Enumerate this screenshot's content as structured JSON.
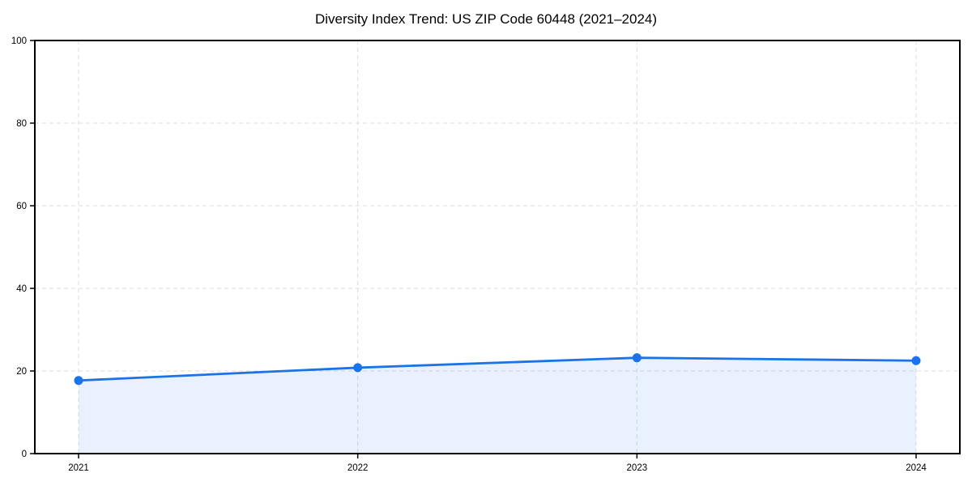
{
  "chart_data": {
    "type": "area",
    "title": "Diversity Index Trend: US ZIP Code 60448 (2021–2024)",
    "categories": [
      "2021",
      "2022",
      "2023",
      "2024"
    ],
    "series": [
      {
        "name": "Diversity Index",
        "values": [
          17.7,
          20.8,
          23.2,
          22.5
        ]
      }
    ],
    "xlabel": "",
    "ylabel": "",
    "ylim": [
      0,
      100
    ],
    "yticks": [
      0,
      20,
      40,
      60,
      80,
      100
    ],
    "grid": "dashed-both-axes",
    "legend": "none",
    "colors": {
      "line": "#1a73e8",
      "marker": "#1a73e8",
      "fill": "#1a73e8",
      "fill_opacity": 0.1,
      "grid": "#dcdcdc",
      "axis": "#000000",
      "background": "#ffffff"
    }
  }
}
